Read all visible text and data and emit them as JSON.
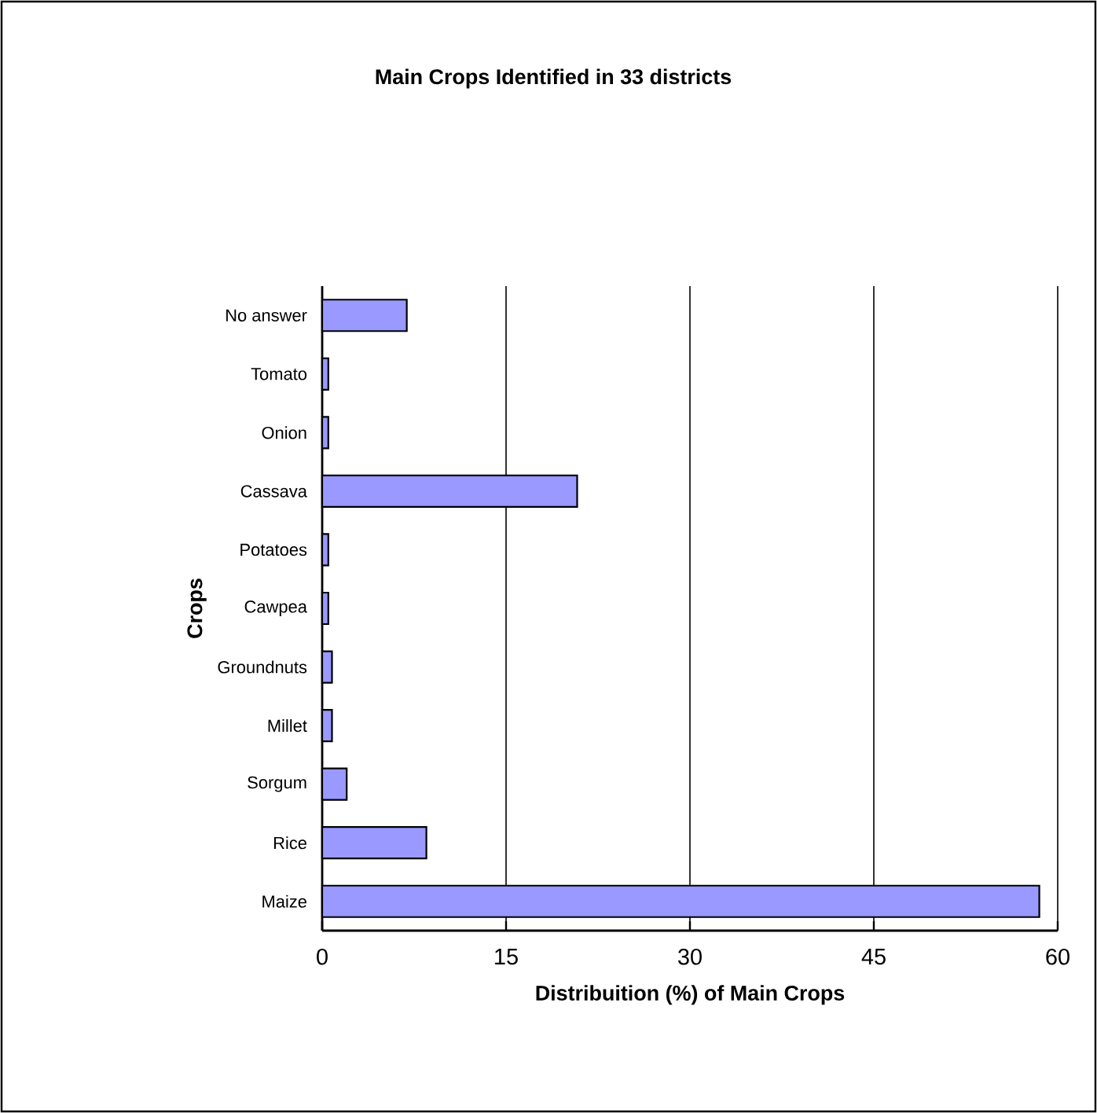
{
  "chart_data": {
    "type": "bar",
    "orientation": "horizontal",
    "title": "Main Crops Identified in 33 districts",
    "xlabel": "Distribuition (%) of Main Crops",
    "ylabel": "Crops",
    "categories": [
      "No answer",
      "Tomato",
      "Onion",
      "Cassava",
      "Potatoes",
      "Cawpea",
      "Groundnuts",
      "Millet",
      "Sorgum",
      "Rice",
      "Maize"
    ],
    "values": [
      6.9,
      0.5,
      0.5,
      20.8,
      0.5,
      0.5,
      0.8,
      0.8,
      2,
      8.5,
      58.5
    ],
    "color": "#9999ff",
    "xlim": [
      0,
      60
    ],
    "xticks": [
      0,
      15,
      30,
      45,
      60
    ],
    "grid": "x"
  }
}
